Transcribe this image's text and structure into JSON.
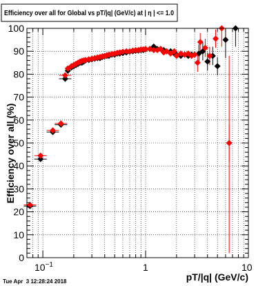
{
  "chart_data": {
    "type": "scatter",
    "title": "Efficiency over all for Global vs pT/|q| (GeV/c) at | η | <= 1.0",
    "xlabel": "pT/|q| (GeV/c)",
    "ylabel": "Efficiency over all (%)",
    "xscale": "log",
    "xlim": [
      0.07,
      10
    ],
    "ylim": [
      0,
      100
    ],
    "grid": true,
    "timestamp": "Tue Apr  3 12:28:24 2018",
    "x_tick_labels": [
      {
        "value": 0.1,
        "base": "10",
        "exp": "−1"
      },
      {
        "value": 1,
        "base": "1",
        "exp": ""
      },
      {
        "value": 10,
        "base": "10",
        "exp": ""
      }
    ],
    "y_ticks": [
      0,
      10,
      20,
      30,
      40,
      50,
      60,
      70,
      80,
      90,
      100
    ],
    "series": [
      {
        "color": "#000000",
        "points": [
          [
            0.075,
            22.5
          ],
          [
            0.095,
            43.0
          ],
          [
            0.125,
            54.8
          ],
          [
            0.15,
            58.0
          ],
          [
            0.165,
            78.0
          ],
          [
            0.175,
            81.5
          ],
          [
            0.19,
            83.0
          ],
          [
            0.2,
            83.5
          ],
          [
            0.21,
            84.0
          ],
          [
            0.22,
            84.5
          ],
          [
            0.23,
            85.0
          ],
          [
            0.24,
            85.0
          ],
          [
            0.25,
            85.5
          ],
          [
            0.26,
            86.0
          ],
          [
            0.28,
            86.2
          ],
          [
            0.3,
            86.5
          ],
          [
            0.32,
            86.8
          ],
          [
            0.34,
            87.0
          ],
          [
            0.36,
            87.0
          ],
          [
            0.38,
            87.5
          ],
          [
            0.4,
            87.8
          ],
          [
            0.42,
            88.0
          ],
          [
            0.44,
            88.0
          ],
          [
            0.47,
            88.5
          ],
          [
            0.5,
            88.5
          ],
          [
            0.53,
            89.0
          ],
          [
            0.56,
            89.0
          ],
          [
            0.6,
            89.2
          ],
          [
            0.65,
            89.5
          ],
          [
            0.7,
            89.8
          ],
          [
            0.75,
            90.0
          ],
          [
            0.8,
            90.2
          ],
          [
            0.85,
            90.3
          ],
          [
            0.9,
            90.5
          ],
          [
            0.95,
            90.5
          ],
          [
            1.0,
            90.8
          ],
          [
            1.1,
            91.0
          ],
          [
            1.2,
            92.0
          ],
          [
            1.3,
            91.0
          ],
          [
            1.4,
            91.0
          ],
          [
            1.5,
            90.5
          ],
          [
            1.6,
            90.0
          ],
          [
            1.75,
            90.0
          ],
          [
            1.9,
            89.0
          ],
          [
            2.0,
            88.5
          ],
          [
            2.2,
            88.0
          ],
          [
            2.4,
            88.5
          ],
          [
            2.6,
            88.0
          ],
          [
            2.8,
            88.5
          ],
          [
            3.0,
            88.5
          ],
          [
            3.3,
            89.0
          ],
          [
            3.6,
            90.0
          ],
          [
            4.0,
            85.5
          ],
          [
            4.5,
            88.0
          ],
          [
            5.0,
            83.5
          ],
          [
            6.0,
            95.0
          ],
          [
            7.5,
            100.0
          ]
        ]
      },
      {
        "color": "#ff0000",
        "points": [
          [
            0.075,
            23.0
          ],
          [
            0.095,
            44.5
          ],
          [
            0.125,
            55.5
          ],
          [
            0.15,
            58.5
          ],
          [
            0.165,
            79.5
          ],
          [
            0.175,
            82.5
          ],
          [
            0.19,
            83.5
          ],
          [
            0.2,
            84.0
          ],
          [
            0.21,
            84.5
          ],
          [
            0.22,
            85.0
          ],
          [
            0.23,
            85.5
          ],
          [
            0.24,
            85.8
          ],
          [
            0.25,
            86.0
          ],
          [
            0.26,
            86.2
          ],
          [
            0.28,
            86.5
          ],
          [
            0.3,
            86.8
          ],
          [
            0.32,
            87.0
          ],
          [
            0.34,
            87.3
          ],
          [
            0.36,
            87.5
          ],
          [
            0.38,
            87.8
          ],
          [
            0.4,
            88.0
          ],
          [
            0.42,
            88.3
          ],
          [
            0.44,
            88.5
          ],
          [
            0.47,
            88.8
          ],
          [
            0.5,
            89.0
          ],
          [
            0.53,
            89.3
          ],
          [
            0.56,
            89.5
          ],
          [
            0.6,
            89.8
          ],
          [
            0.65,
            90.0
          ],
          [
            0.7,
            90.0
          ],
          [
            0.75,
            90.3
          ],
          [
            0.8,
            90.5
          ],
          [
            0.85,
            90.5
          ],
          [
            0.9,
            90.8
          ],
          [
            0.95,
            90.8
          ],
          [
            1.0,
            91.0
          ],
          [
            1.1,
            91.0
          ],
          [
            1.2,
            90.5
          ],
          [
            1.3,
            90.5
          ],
          [
            1.4,
            91.0
          ],
          [
            1.5,
            89.5
          ],
          [
            1.6,
            90.0
          ],
          [
            1.75,
            89.0
          ],
          [
            1.9,
            90.0
          ],
          [
            2.0,
            88.0
          ],
          [
            2.2,
            89.0
          ],
          [
            2.4,
            88.5
          ],
          [
            2.6,
            89.0
          ],
          [
            2.8,
            88.0
          ],
          [
            3.0,
            88.5
          ],
          [
            3.2,
            85.0
          ],
          [
            3.4,
            94.0
          ],
          [
            3.8,
            91.5
          ],
          [
            4.2,
            88.0
          ],
          [
            4.8,
            95.5
          ],
          [
            5.5,
            100.0
          ],
          [
            6.5,
            50.0
          ]
        ]
      }
    ]
  }
}
